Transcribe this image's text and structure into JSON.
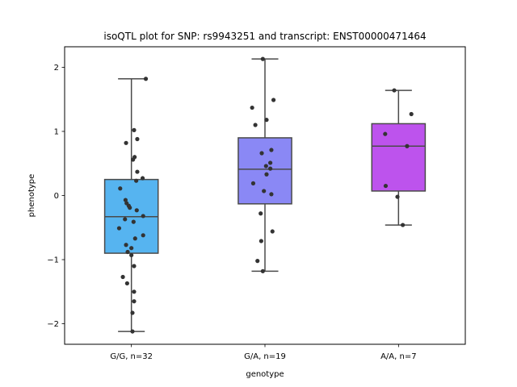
{
  "chart_data": {
    "type": "boxplot",
    "title": "isoQTL plot for SNP: rs9943251 and transcript: ENST00000471464",
    "xlabel": "genotype",
    "ylabel": "phenotype",
    "ylim": [
      -2.32,
      2.32
    ],
    "yticks": [
      -2,
      -1,
      0,
      1,
      2
    ],
    "yticklabels": [
      "−2",
      "−1",
      "0",
      "1",
      "2"
    ],
    "grid": false,
    "categories": [
      "G/G, n=32",
      "G/A, n=19",
      "A/A, n=7"
    ],
    "boxes": [
      {
        "category": "G/G, n=32",
        "color": "#56b4f0",
        "q1": -0.9,
        "median": -0.33,
        "q3": 0.25,
        "whisker_low": -2.12,
        "whisker_high": 1.82,
        "points": [
          {
            "j": 0.27,
            "y": 1.82
          },
          {
            "j": 0.05,
            "y": 1.02
          },
          {
            "j": 0.11,
            "y": 0.88
          },
          {
            "j": -0.1,
            "y": 0.82
          },
          {
            "j": 0.06,
            "y": 0.6
          },
          {
            "j": 0.03,
            "y": 0.56
          },
          {
            "j": 0.11,
            "y": 0.37
          },
          {
            "j": 0.21,
            "y": 0.27
          },
          {
            "j": 0.09,
            "y": 0.23
          },
          {
            "j": -0.21,
            "y": 0.11
          },
          {
            "j": -0.11,
            "y": -0.07
          },
          {
            "j": -0.09,
            "y": -0.12
          },
          {
            "j": -0.05,
            "y": -0.16
          },
          {
            "j": -0.03,
            "y": -0.19
          },
          {
            "j": 0.1,
            "y": -0.23
          },
          {
            "j": 0.22,
            "y": -0.32
          },
          {
            "j": -0.12,
            "y": -0.37
          },
          {
            "j": 0.04,
            "y": -0.41
          },
          {
            "j": -0.23,
            "y": -0.51
          },
          {
            "j": 0.22,
            "y": -0.62
          },
          {
            "j": 0.07,
            "y": -0.67
          },
          {
            "j": -0.1,
            "y": -0.77
          },
          {
            "j": 0.0,
            "y": -0.82
          },
          {
            "j": -0.07,
            "y": -0.88
          },
          {
            "j": 0.0,
            "y": -0.93
          },
          {
            "j": 0.05,
            "y": -1.1
          },
          {
            "j": -0.16,
            "y": -1.27
          },
          {
            "j": -0.08,
            "y": -1.37
          },
          {
            "j": 0.05,
            "y": -1.5
          },
          {
            "j": 0.05,
            "y": -1.65
          },
          {
            "j": 0.02,
            "y": -1.83
          },
          {
            "j": 0.02,
            "y": -2.12
          }
        ]
      },
      {
        "category": "G/A, n=19",
        "color": "#8a88f5",
        "q1": -0.13,
        "median": 0.41,
        "q3": 0.9,
        "whisker_low": -1.18,
        "whisker_high": 2.13,
        "points": [
          {
            "j": -0.04,
            "y": 2.13
          },
          {
            "j": 0.16,
            "y": 1.49
          },
          {
            "j": -0.24,
            "y": 1.37
          },
          {
            "j": 0.03,
            "y": 1.18
          },
          {
            "j": -0.18,
            "y": 1.1
          },
          {
            "j": 0.12,
            "y": 0.71
          },
          {
            "j": -0.06,
            "y": 0.66
          },
          {
            "j": 0.1,
            "y": 0.51
          },
          {
            "j": 0.02,
            "y": 0.46
          },
          {
            "j": 0.1,
            "y": 0.42
          },
          {
            "j": 0.03,
            "y": 0.33
          },
          {
            "j": -0.22,
            "y": 0.19
          },
          {
            "j": -0.02,
            "y": 0.07
          },
          {
            "j": 0.12,
            "y": 0.02
          },
          {
            "j": -0.08,
            "y": -0.28
          },
          {
            "j": 0.14,
            "y": -0.56
          },
          {
            "j": -0.07,
            "y": -0.71
          },
          {
            "j": -0.14,
            "y": -1.02
          },
          {
            "j": -0.04,
            "y": -1.18
          }
        ]
      },
      {
        "category": "A/A, n=7",
        "color": "#bd53ed",
        "q1": 0.07,
        "median": 0.77,
        "q3": 1.12,
        "whisker_low": -0.46,
        "whisker_high": 1.64,
        "points": [
          {
            "j": -0.08,
            "y": 1.64
          },
          {
            "j": 0.24,
            "y": 1.27
          },
          {
            "j": -0.25,
            "y": 0.96
          },
          {
            "j": 0.16,
            "y": 0.77
          },
          {
            "j": -0.24,
            "y": 0.15
          },
          {
            "j": -0.02,
            "y": -0.02
          },
          {
            "j": 0.08,
            "y": -0.46
          }
        ]
      }
    ]
  }
}
